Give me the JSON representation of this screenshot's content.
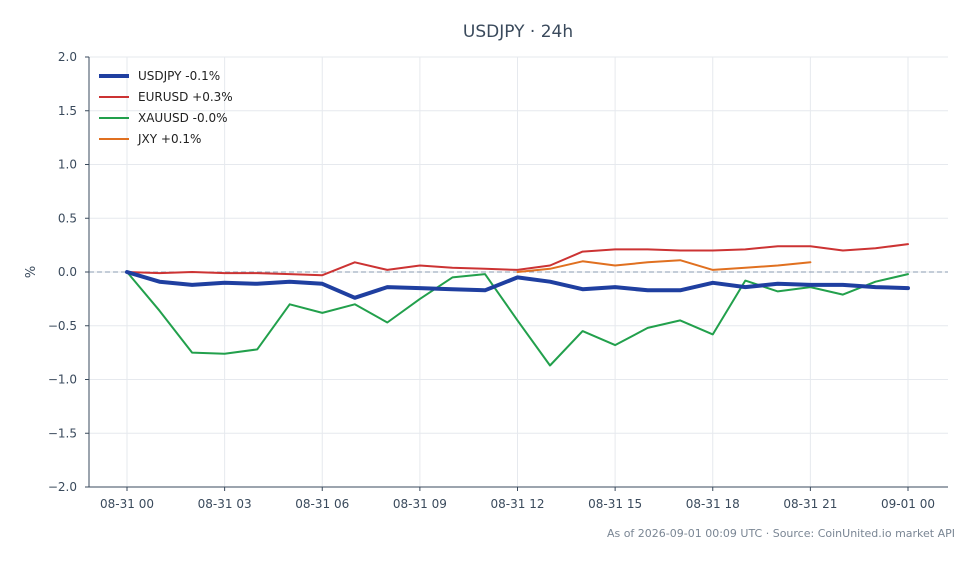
{
  "footer": "As of 2026-09-01 00:09 UTC · Source: CoinUnited.io market API",
  "chart_data": {
    "type": "line",
    "title": "USDJPY · 24h",
    "xlabel": "",
    "ylabel": "%",
    "ylim": [
      -2.0,
      2.0
    ],
    "yticks": [
      -2.0,
      -1.5,
      -1.0,
      -0.5,
      0.0,
      0.5,
      1.0,
      1.5,
      2.0
    ],
    "ytick_labels": [
      "−2.0",
      "−1.5",
      "−1.0",
      "−0.5",
      "0.0",
      "0.5",
      "1.0",
      "1.5",
      "2.0"
    ],
    "x": [
      "08-31 00",
      "08-31 01",
      "08-31 02",
      "08-31 03",
      "08-31 04",
      "08-31 05",
      "08-31 06",
      "08-31 07",
      "08-31 08",
      "08-31 09",
      "08-31 10",
      "08-31 11",
      "08-31 12",
      "08-31 13",
      "08-31 14",
      "08-31 15",
      "08-31 16",
      "08-31 17",
      "08-31 18",
      "08-31 19",
      "08-31 20",
      "08-31 21",
      "08-31 22",
      "08-31 23",
      "09-01 00"
    ],
    "xticks": [
      "08-31 00",
      "08-31 03",
      "08-31 06",
      "08-31 09",
      "08-31 12",
      "08-31 15",
      "08-31 18",
      "08-31 21",
      "09-01 00"
    ],
    "reference_line": 0.0,
    "grid": true,
    "legend_position": "top-left",
    "series": [
      {
        "name": "USDJPY -0.1%",
        "color": "#1f3fa0",
        "emphasis": true,
        "values": [
          0.0,
          -0.09,
          -0.12,
          -0.1,
          -0.11,
          -0.09,
          -0.11,
          -0.24,
          -0.14,
          -0.15,
          -0.16,
          -0.17,
          -0.05,
          -0.09,
          -0.16,
          -0.14,
          -0.17,
          -0.17,
          -0.1,
          -0.14,
          -0.11,
          -0.12,
          -0.12,
          -0.14,
          -0.15
        ]
      },
      {
        "name": "EURUSD +0.3%",
        "color": "#cc3333",
        "emphasis": false,
        "values": [
          0.0,
          -0.01,
          0.0,
          -0.01,
          -0.01,
          -0.02,
          -0.03,
          0.09,
          0.02,
          0.06,
          0.04,
          0.03,
          0.02,
          0.06,
          0.19,
          0.21,
          0.21,
          0.2,
          0.2,
          0.21,
          0.24,
          0.24,
          0.2,
          0.22,
          0.26
        ]
      },
      {
        "name": "XAUUSD -0.0%",
        "color": "#22a04c",
        "emphasis": false,
        "values": [
          0.0,
          -0.36,
          -0.75,
          -0.76,
          -0.72,
          -0.3,
          -0.38,
          -0.3,
          -0.47,
          -0.25,
          -0.05,
          -0.02,
          -0.45,
          -0.87,
          -0.55,
          -0.68,
          -0.52,
          -0.45,
          -0.58,
          -0.08,
          -0.18,
          -0.14,
          -0.21,
          -0.09,
          -0.02
        ]
      },
      {
        "name": "JXY +0.1%",
        "color": "#e07020",
        "emphasis": false,
        "values": [
          null,
          null,
          null,
          null,
          null,
          null,
          null,
          null,
          null,
          null,
          null,
          null,
          0.0,
          0.03,
          0.1,
          0.06,
          0.09,
          0.11,
          0.02,
          0.04,
          0.06,
          0.09,
          null,
          null,
          null
        ]
      }
    ]
  }
}
